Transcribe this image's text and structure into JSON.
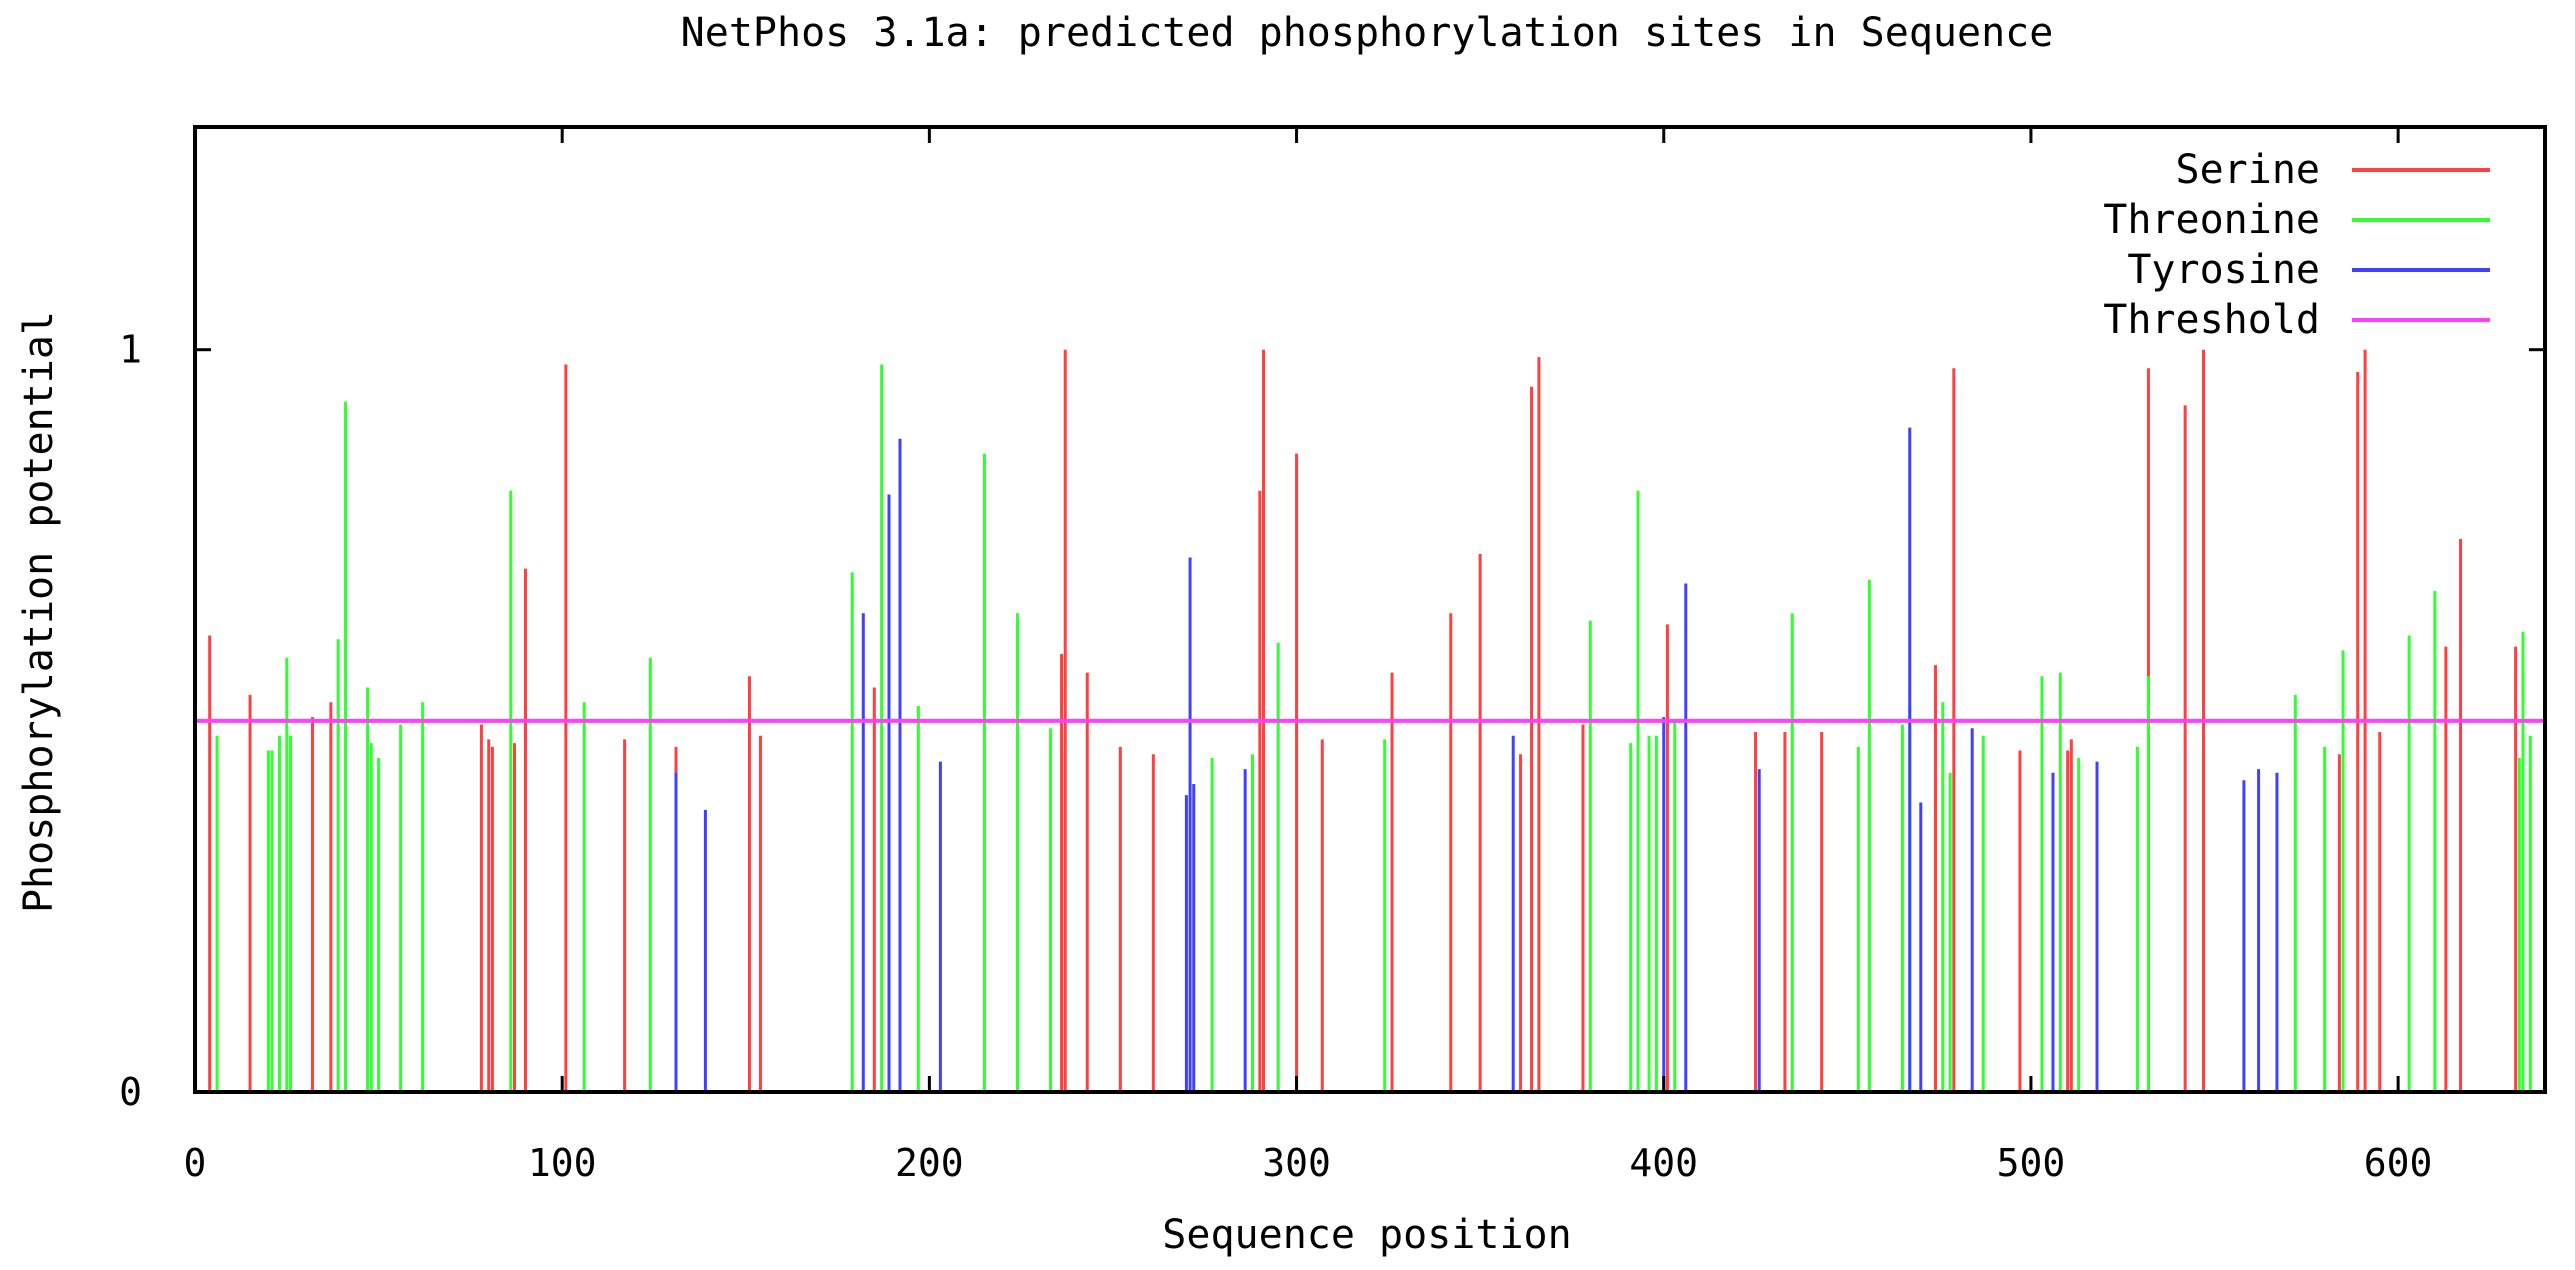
{
  "chart_data": {
    "type": "bar",
    "title": "NetPhos 3.1a: predicted phosphorylation sites in Sequence",
    "xlabel": "Sequence position",
    "ylabel": "Phosphorylation potential",
    "xlim": [
      0,
      640
    ],
    "ylim": [
      0,
      1.3
    ],
    "x_ticks": [
      0,
      100,
      200,
      300,
      400,
      500,
      600
    ],
    "y_ticks": [
      0,
      1
    ],
    "legend_position": "top-right",
    "threshold": 0.5,
    "series": [
      {
        "name": "Serine",
        "color": "#ff4040",
        "points": [
          [
            4,
            0.615
          ],
          [
            15,
            0.535
          ],
          [
            32,
            0.505
          ],
          [
            37,
            0.525
          ],
          [
            78,
            0.495
          ],
          [
            80,
            0.475
          ],
          [
            81,
            0.465
          ],
          [
            87,
            0.47
          ],
          [
            90,
            0.705
          ],
          [
            101,
            0.98
          ],
          [
            117,
            0.475
          ],
          [
            131,
            0.465
          ],
          [
            151,
            0.56
          ],
          [
            154,
            0.48
          ],
          [
            185,
            0.545
          ],
          [
            236,
            0.59
          ],
          [
            237,
            1.0
          ],
          [
            243,
            0.565
          ],
          [
            252,
            0.465
          ],
          [
            261,
            0.455
          ],
          [
            290,
            0.81
          ],
          [
            291,
            1.0
          ],
          [
            300,
            0.86
          ],
          [
            307,
            0.475
          ],
          [
            326,
            0.565
          ],
          [
            342,
            0.645
          ],
          [
            350,
            0.725
          ],
          [
            361,
            0.455
          ],
          [
            364,
            0.95
          ],
          [
            366,
            0.99
          ],
          [
            378,
            0.495
          ],
          [
            401,
            0.63
          ],
          [
            425,
            0.485
          ],
          [
            433,
            0.485
          ],
          [
            443,
            0.485
          ],
          [
            474,
            0.575
          ],
          [
            479,
            0.975
          ],
          [
            497,
            0.46
          ],
          [
            510,
            0.46
          ],
          [
            511,
            0.475
          ],
          [
            532,
            0.975
          ],
          [
            542,
            0.925
          ],
          [
            547,
            1.0
          ],
          [
            584,
            0.455
          ],
          [
            589,
            0.97
          ],
          [
            591,
            1.0
          ],
          [
            595,
            0.485
          ],
          [
            613,
            0.6
          ],
          [
            617,
            0.745
          ],
          [
            632,
            0.6
          ]
        ]
      },
      {
        "name": "Threonine",
        "color": "#30ff30",
        "points": [
          [
            6,
            0.48
          ],
          [
            20,
            0.46
          ],
          [
            21,
            0.46
          ],
          [
            23,
            0.48
          ],
          [
            25,
            0.585
          ],
          [
            26,
            0.48
          ],
          [
            39,
            0.61
          ],
          [
            41,
            0.93
          ],
          [
            47,
            0.545
          ],
          [
            48,
            0.47
          ],
          [
            50,
            0.45
          ],
          [
            56,
            0.495
          ],
          [
            62,
            0.525
          ],
          [
            86,
            0.81
          ],
          [
            106,
            0.525
          ],
          [
            124,
            0.585
          ],
          [
            179,
            0.7
          ],
          [
            187,
            0.98
          ],
          [
            197,
            0.52
          ],
          [
            215,
            0.86
          ],
          [
            224,
            0.645
          ],
          [
            233,
            0.49
          ],
          [
            277,
            0.45
          ],
          [
            288,
            0.455
          ],
          [
            295,
            0.605
          ],
          [
            324,
            0.475
          ],
          [
            380,
            0.635
          ],
          [
            391,
            0.47
          ],
          [
            393,
            0.81
          ],
          [
            396,
            0.48
          ],
          [
            398,
            0.48
          ],
          [
            403,
            0.5
          ],
          [
            435,
            0.645
          ],
          [
            453,
            0.465
          ],
          [
            456,
            0.69
          ],
          [
            465,
            0.495
          ],
          [
            467,
            0.52
          ],
          [
            476,
            0.525
          ],
          [
            478,
            0.43
          ],
          [
            487,
            0.48
          ],
          [
            503,
            0.56
          ],
          [
            508,
            0.565
          ],
          [
            513,
            0.45
          ],
          [
            529,
            0.465
          ],
          [
            532,
            0.56
          ],
          [
            572,
            0.535
          ],
          [
            580,
            0.465
          ],
          [
            585,
            0.595
          ],
          [
            603,
            0.615
          ],
          [
            610,
            0.675
          ],
          [
            633,
            0.45
          ],
          [
            634,
            0.62
          ],
          [
            636,
            0.48
          ]
        ]
      },
      {
        "name": "Tyrosine",
        "color": "#4040ff",
        "points": [
          [
            131,
            0.43
          ],
          [
            139,
            0.38
          ],
          [
            182,
            0.645
          ],
          [
            189,
            0.805
          ],
          [
            192,
            0.88
          ],
          [
            203,
            0.445
          ],
          [
            270,
            0.4
          ],
          [
            271,
            0.72
          ],
          [
            272,
            0.415
          ],
          [
            286,
            0.435
          ],
          [
            359,
            0.48
          ],
          [
            400,
            0.505
          ],
          [
            406,
            0.685
          ],
          [
            426,
            0.435
          ],
          [
            467,
            0.895
          ],
          [
            470,
            0.39
          ],
          [
            484,
            0.49
          ],
          [
            506,
            0.43
          ],
          [
            518,
            0.445
          ],
          [
            558,
            0.42
          ],
          [
            562,
            0.435
          ],
          [
            567,
            0.43
          ]
        ]
      },
      {
        "name": "Threshold",
        "color": "#ff40ff"
      }
    ]
  }
}
